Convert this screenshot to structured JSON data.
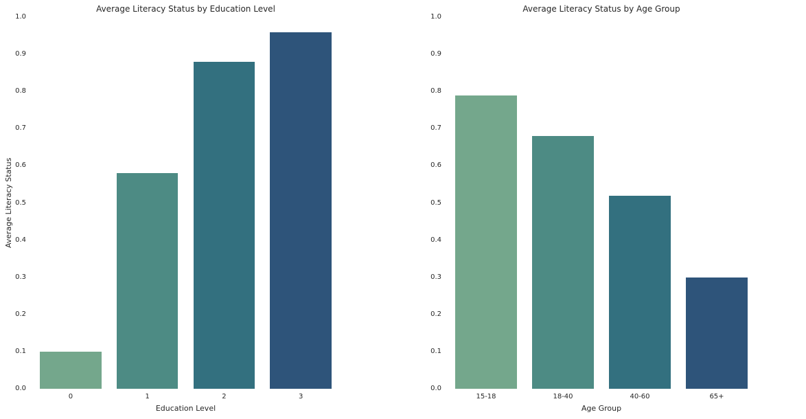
{
  "figure": {
    "background": "#ffffff",
    "text_color": "#262626"
  },
  "palette": [
    "#74a78c",
    "#4d8b84",
    "#33707f",
    "#2e547a"
  ],
  "chart_data": [
    {
      "type": "bar",
      "title": "Average Literacy Status by Education Level",
      "xlabel": "Education Level",
      "ylabel": "Average Literacy Status",
      "categories": [
        "0",
        "1",
        "2",
        "3"
      ],
      "values": [
        0.1,
        0.58,
        0.88,
        0.96
      ],
      "bar_colors": [
        "#74a78c",
        "#4d8b84",
        "#33707f",
        "#2e547a"
      ],
      "ylim": [
        0.0,
        1.0
      ],
      "ytick_step": 0.1,
      "ytick_labels": [
        "0.0",
        "0.1",
        "0.2",
        "0.3",
        "0.4",
        "0.5",
        "0.6",
        "0.7",
        "0.8",
        "0.9",
        "1.0"
      ],
      "grid": false,
      "legend": null
    },
    {
      "type": "bar",
      "title": "Average Literacy Status by Age Group",
      "xlabel": "Age Group",
      "ylabel": "",
      "categories": [
        "15-18",
        "18-40",
        "40-60",
        "65+"
      ],
      "values": [
        0.79,
        0.68,
        0.52,
        0.3
      ],
      "bar_colors": [
        "#74a78c",
        "#4d8b84",
        "#33707f",
        "#2e547a"
      ],
      "ylim": [
        0.0,
        1.0
      ],
      "ytick_step": 0.1,
      "ytick_labels": [
        "0.0",
        "0.1",
        "0.2",
        "0.3",
        "0.4",
        "0.5",
        "0.6",
        "0.7",
        "0.8",
        "0.9",
        "1.0"
      ],
      "grid": false,
      "legend": null
    }
  ]
}
